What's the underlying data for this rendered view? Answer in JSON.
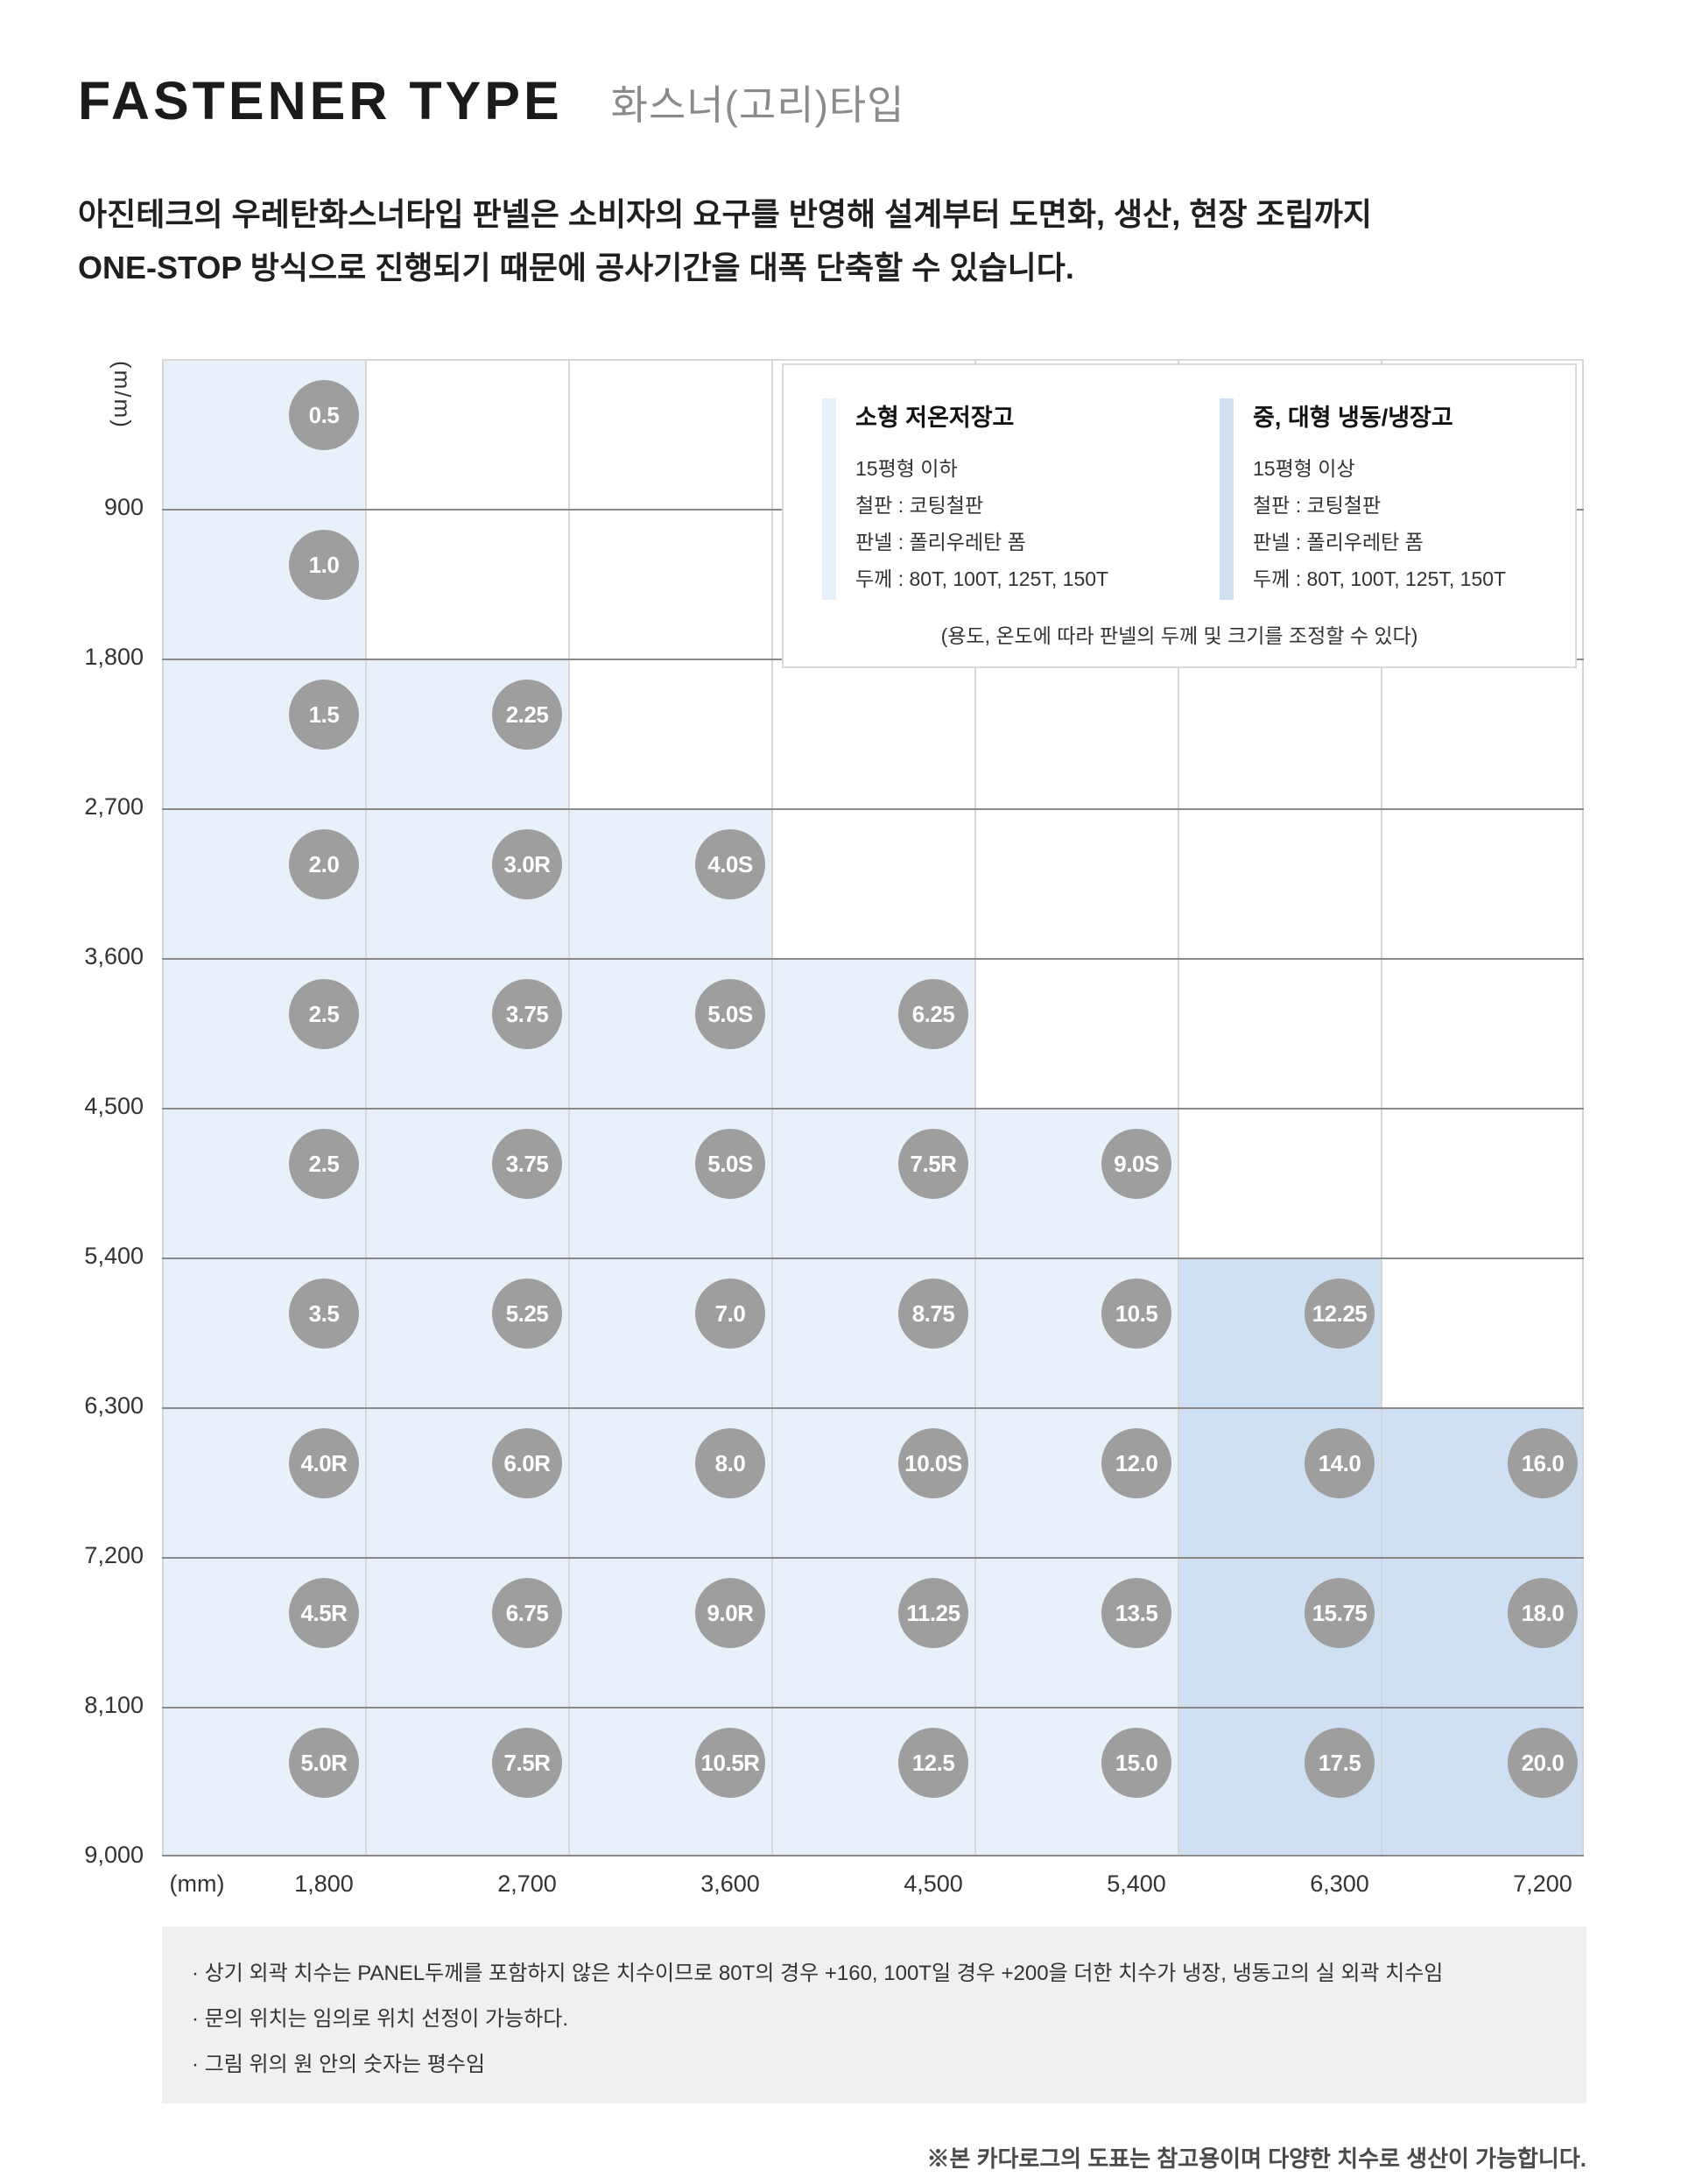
{
  "page": {
    "title": "FASTENER TYPE",
    "subtitle": "화스너(고리)타입",
    "description_line1": "아진테크의 우레탄화스너타입 판넬은 소비자의 요구를 반영해 설계부터 도면화, 생산, 현장 조립까지",
    "description_line2": "ONE-STOP 방식으로 진행되기 때문에 공사기간을 대폭 단축할 수 있습니다."
  },
  "chart_data": {
    "type": "heatmap",
    "x_axis_unit": "(mm)",
    "y_axis_unit": "(m/m)",
    "x_ticks": [
      "1,800",
      "2,700",
      "3,600",
      "4,500",
      "5,400",
      "6,300",
      "7,200"
    ],
    "y_ticks": [
      "900",
      "1,800",
      "2,700",
      "3,600",
      "4,500",
      "5,400",
      "6,300",
      "7,200",
      "8,100",
      "9,000"
    ],
    "rows": [
      [
        "0.5"
      ],
      [
        "1.0"
      ],
      [
        "1.5",
        "2.25"
      ],
      [
        "2.0",
        "3.0R",
        "4.0S"
      ],
      [
        "2.5",
        "3.75",
        "5.0S",
        "6.25"
      ],
      [
        "2.5",
        "3.75",
        "5.0S",
        "7.5R",
        "9.0S"
      ],
      [
        "3.5",
        "5.25",
        "7.0",
        "8.75",
        "10.5",
        "12.25"
      ],
      [
        "4.0R",
        "6.0R",
        "8.0",
        "10.0S",
        "12.0",
        "14.0",
        "16.0"
      ],
      [
        "4.5R",
        "6.75",
        "9.0R",
        "11.25",
        "13.5",
        "15.75",
        "18.0"
      ],
      [
        "5.0R",
        "7.5R",
        "10.5R",
        "12.5",
        "15.0",
        "17.5",
        "20.0"
      ]
    ],
    "large_cells": [
      [
        6,
        5
      ],
      [
        7,
        5
      ],
      [
        7,
        6
      ],
      [
        8,
        5
      ],
      [
        8,
        6
      ],
      [
        9,
        5
      ],
      [
        9,
        6
      ]
    ],
    "colors": {
      "small": "#e8f1fa",
      "large": "#cfe0f2",
      "circle": "#9e9e9e"
    },
    "grid": true,
    "legend_position": "top-right"
  },
  "legend": {
    "small": {
      "title": "소형 저온저장고",
      "lines": [
        "15평형 이하",
        "철판 : 코팅철판",
        "판넬 : 폴리우레탄 폼",
        "두께 : 80T, 100T, 125T, 150T"
      ]
    },
    "large": {
      "title": "중, 대형 냉동/냉장고",
      "lines": [
        "15평형 이상",
        "철판 : 코팅철판",
        "판넬 : 폴리우레탄 폼",
        "두께 : 80T, 100T, 125T, 150T"
      ]
    },
    "footnote": "(용도, 온도에 따라 판넬의 두께 및 크기를 조정할 수 있다)"
  },
  "notes": [
    "· 상기 외곽 치수는 PANEL두께를 포함하지 않은 치수이므로 80T의 경우 +160, 100T일 경우 +200을 더한 치수가 냉장, 냉동고의 실 외곽 치수임",
    "· 문의 위치는 임의로 위치 선정이 가능하다.",
    "· 그림 위의 원 안의 숫자는 평수임"
  ],
  "disclaimer": "※본 카다로그의 도표는 참고용이며 다양한 치수로 생산이 가능합니다."
}
